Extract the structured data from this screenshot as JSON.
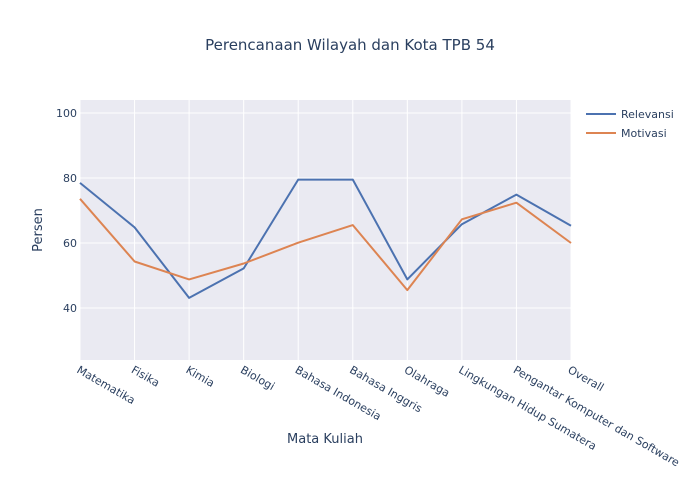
{
  "chart_data": {
    "type": "line",
    "title": "Perencanaan Wilayah dan Kota TPB 54",
    "xlabel": "Mata Kuliah",
    "ylabel": "Persen",
    "ylim": [
      24,
      104
    ],
    "yticks": [
      40,
      60,
      80,
      100
    ],
    "grid": true,
    "legend_position": "top-right",
    "categories": [
      "Matematika",
      "Fisika",
      "Kimia",
      "Biologi",
      "Bahasa Indonesia",
      "Bahasa Inggris",
      "Olahraga",
      "Lingkungan Hidup Sumatera",
      "Pengantar Komputer dan Software",
      "Overall"
    ],
    "series": [
      {
        "name": "Relevansi",
        "color": "#4c72b0",
        "values": [
          78.5,
          64.8,
          43.1,
          52.2,
          79.5,
          79.5,
          48.8,
          65.8,
          74.9,
          65.3
        ]
      },
      {
        "name": "Motivasi",
        "color": "#dd8452",
        "values": [
          73.6,
          54.3,
          48.8,
          53.7,
          60.1,
          65.5,
          45.5,
          67.3,
          72.4,
          60.0
        ]
      }
    ]
  }
}
